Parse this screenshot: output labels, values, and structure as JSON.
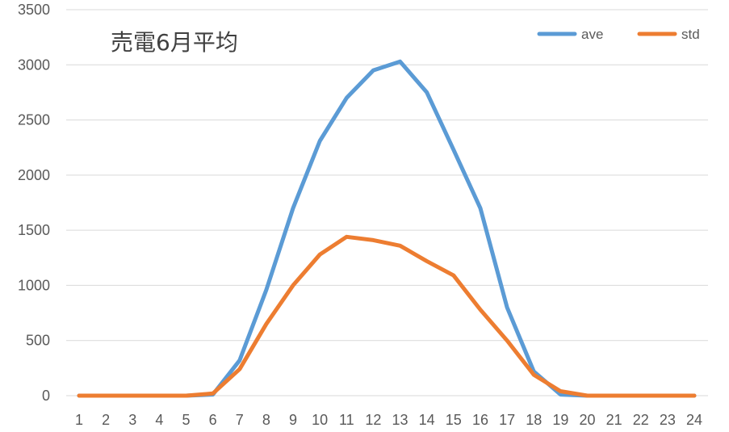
{
  "chart_data": {
    "type": "line",
    "title": "売電6月平均",
    "xlabel": "",
    "ylabel": "",
    "categories": [
      "1",
      "2",
      "3",
      "4",
      "5",
      "6",
      "7",
      "8",
      "9",
      "10",
      "11",
      "12",
      "13",
      "14",
      "15",
      "16",
      "17",
      "18",
      "19",
      "20",
      "21",
      "22",
      "23",
      "24"
    ],
    "ylim": [
      0,
      3500
    ],
    "yticks": [
      "0",
      "500",
      "1000",
      "1500",
      "2000",
      "2500",
      "3000",
      "3500"
    ],
    "grid": true,
    "legend_position": "top-right",
    "series": [
      {
        "name": "ave",
        "color": "#5b9bd5",
        "values": [
          0,
          0,
          0,
          0,
          0,
          10,
          320,
          960,
          1700,
          2310,
          2700,
          2950,
          3030,
          2750,
          2230,
          1700,
          800,
          220,
          10,
          0,
          0,
          0,
          0,
          0
        ]
      },
      {
        "name": "std",
        "color": "#ed7d31",
        "values": [
          0,
          0,
          0,
          0,
          0,
          20,
          240,
          650,
          1000,
          1280,
          1440,
          1410,
          1360,
          1220,
          1090,
          780,
          500,
          190,
          40,
          0,
          0,
          0,
          0,
          0
        ]
      }
    ],
    "gridline_color": "#d9d9d9"
  }
}
